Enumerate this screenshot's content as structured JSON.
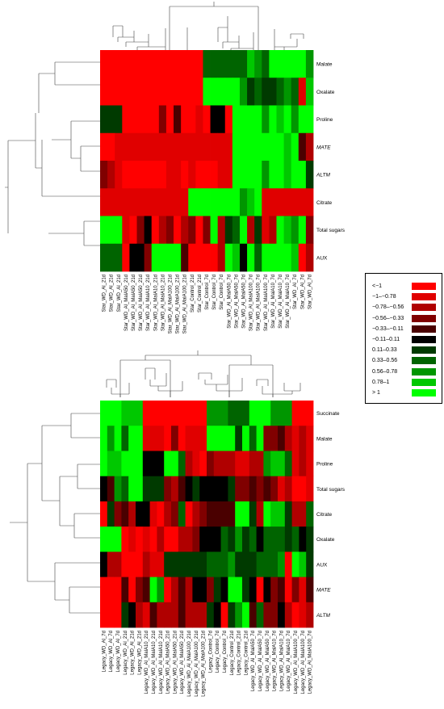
{
  "chart_data": [
    {
      "type": "heatmap",
      "name_hint": "star",
      "rows": [
        "Malate",
        "Oxalate",
        "Proline",
        "MATE",
        "ALTM",
        "Citrate",
        "Total sugars",
        "AUX"
      ],
      "italic_rows": [
        "MATE",
        "ALTM"
      ],
      "columns": [
        "Star_WD_Al_21d",
        "Star_WD_Al_21d",
        "Star_WD_Al_21d",
        "Star_WD_Al_MalA50_21d",
        "Star_WD_Al_MalA50_21d",
        "Star_WD_Al_MalA50_21d",
        "Star_WD_Al_MalA10_21d",
        "Star_WD_Al_MalA10_21d",
        "Star_WD_Al_MalA10_21d",
        "Star_WD_Al_MalA100_21d",
        "Star_WD_Al_MalA100_21d",
        "Star_WD_Al_MalA100_21d",
        "Star_Control_21d",
        "Star_Control_21d",
        "Star_Control_7d",
        "Star_Control_7d",
        "Star_Control_7d",
        "Star_WD_Al_MalA50_7d",
        "Star_WD_Al_MalA50_7d",
        "Star_WD_Al_MalA50_7d",
        "Star_WD_Al_MalA100_7d",
        "Star_WD_Al_MalA100_7d",
        "Star_WD_Al_MalA100_7d",
        "Star_WD_Al_MalA10_7d",
        "Star_WD_Al_MalA10_7d",
        "Star_WD_Al_MalA10_7d",
        "Star_WD_Al_7d",
        "Star_WD_Al_7d",
        "Star_WD_Al_7d"
      ],
      "values": [
        [
          -1.2,
          -1.2,
          -1.2,
          -1.2,
          -1.2,
          -1.2,
          -1.2,
          -1.2,
          -1.2,
          -1.2,
          -1.2,
          -1.2,
          -1.2,
          -1.2,
          0.4,
          0.4,
          0.4,
          0.4,
          0.4,
          0.4,
          0.9,
          0.6,
          0.4,
          1.2,
          1.2,
          1.2,
          1.2,
          1.2,
          0.7
        ],
        [
          -1.2,
          -1.2,
          -1.2,
          -1.2,
          -1.2,
          -1.2,
          -1.2,
          -1.2,
          -1.2,
          -1.2,
          -1.2,
          -1.2,
          -1.2,
          -1.2,
          1.2,
          1.2,
          1.2,
          1.2,
          1.2,
          0.6,
          0.3,
          0.4,
          0.3,
          0.3,
          0.4,
          0.6,
          0.5,
          -1.0,
          0.9
        ],
        [
          0.2,
          0.2,
          0.2,
          -1.2,
          -1.2,
          -1.2,
          -1.2,
          -1.2,
          -0.5,
          -1.2,
          -0.3,
          -1.2,
          -1.2,
          -0.9,
          -1.2,
          0.0,
          0.0,
          -1.2,
          1.2,
          1.2,
          1.2,
          1.2,
          0.6,
          1.2,
          0.9,
          1.2,
          0.6,
          1.2,
          1.2
        ],
        [
          -1.1,
          -1.1,
          -0.85,
          -0.85,
          -0.85,
          -0.85,
          -0.85,
          -0.85,
          -0.85,
          -0.85,
          -0.85,
          -0.85,
          -0.85,
          -0.85,
          -0.85,
          -0.85,
          -0.85,
          -0.85,
          1.2,
          1.2,
          1.2,
          1.2,
          1.2,
          1.2,
          1.2,
          0.8,
          1.2,
          -0.2,
          -0.6
        ],
        [
          -0.5,
          -0.7,
          -0.85,
          -1.1,
          -1.1,
          -1.1,
          -1.1,
          -1.1,
          -1.1,
          -0.85,
          -0.85,
          -1.1,
          -0.85,
          -1.1,
          -1.1,
          -1.1,
          -0.85,
          -0.85,
          1.2,
          1.2,
          1.2,
          1.2,
          0.7,
          1.2,
          1.2,
          0.8,
          1.2,
          1.2,
          0.3
        ],
        [
          -0.85,
          -0.85,
          -0.85,
          -0.85,
          -0.85,
          -0.85,
          -0.85,
          -0.85,
          -0.85,
          -0.85,
          -0.85,
          -0.85,
          1.2,
          1.2,
          1.2,
          1.2,
          1.2,
          1.2,
          1.2,
          0.6,
          0.9,
          1.2,
          -0.85,
          -0.85,
          -0.85,
          -0.85,
          -0.85,
          -0.85,
          -0.85
        ],
        [
          1.2,
          1.2,
          1.2,
          -0.95,
          -1.2,
          -0.45,
          -0.05,
          -1.2,
          -0.6,
          -0.35,
          -1.2,
          -0.7,
          -0.4,
          -1.2,
          -0.5,
          1.2,
          -0.7,
          0.2,
          0.5,
          1.2,
          -0.6,
          0.3,
          -0.8,
          -0.6,
          1.2,
          0.8,
          0.6,
          1.2,
          -0.55
        ],
        [
          0.4,
          0.4,
          0.4,
          -1.1,
          0.1,
          0.1,
          -0.35,
          1.2,
          1.2,
          1.2,
          1.2,
          -0.2,
          -1.2,
          -1.2,
          -1.2,
          -1.2,
          -0.7,
          1.2,
          0.8,
          -0.05,
          1.2,
          0.5,
          1.2,
          1.2,
          1.2,
          1.2,
          0.8,
          -1.2,
          -0.6
        ]
      ]
    },
    {
      "type": "heatmap",
      "name_hint": "legacy",
      "rows": [
        "Succinate",
        "Malate",
        "Proline",
        "Total sugars",
        "Citrate",
        "Oxalate",
        "AUX",
        "MATE",
        "ALTM"
      ],
      "italic_rows": [
        "MATE",
        "ALTM"
      ],
      "columns": [
        "Legacy_WD_Al_7d",
        "Legacy_WD_Al_7d",
        "Legacy_WD_Al_7d",
        "Legacy_WD_Al_21d",
        "Legacy_WD_Al_21d",
        "Legacy_WD_Al_21d",
        "Legacy_WD_Al_MalA10_21d",
        "Legacy_WD_Al_MalA10_21d",
        "Legacy_WD_Al_MalA10_21d",
        "Legacy_WD_Al_MalA50_21d",
        "Legacy_WD_Al_MalA50_21d",
        "Legacy_WD_Al_MalA50_21d",
        "Legacy_WD_Al_MalA100_21d",
        "Legacy_WD_Al_MalA100_21d",
        "Legacy_WD_Al_MalA100_21d",
        "Legacy_Control_7d",
        "Legacy_Control_7d",
        "Legacy_Control_7d",
        "Legacy_Control_21d",
        "Legacy_Control_21d",
        "Legacy_Control_21d",
        "Legacy_WD_Al_MalA50_7d",
        "Legacy_WD_Al_MalA50_7d",
        "Legacy_WD_Al_MalA50_7d",
        "Legacy_WD_Al_MalA10_7d",
        "Legacy_WD_Al_MalA10_7d",
        "Legacy_WD_Al_MalA10_7d",
        "Legacy_WD_Al_MalA100_7d",
        "Legacy_WD_Al_MalA100_7d",
        "Legacy_WD_Al_MalA100_7d"
      ],
      "values": [
        [
          1.2,
          1.2,
          1.2,
          0.9,
          0.9,
          0.9,
          -1.2,
          -1.2,
          -1.2,
          -1.2,
          -1.2,
          -1.2,
          -1.2,
          -1.2,
          -1.2,
          0.7,
          0.7,
          0.7,
          0.4,
          0.4,
          0.4,
          1.2,
          1.2,
          1.2,
          0.6,
          0.6,
          0.6,
          -1.2,
          -1.2,
          -1.2
        ],
        [
          1.2,
          0.6,
          1.2,
          0.5,
          1.2,
          1.2,
          -0.85,
          -0.85,
          -0.85,
          -1.2,
          -0.5,
          -1.2,
          -0.85,
          -0.85,
          -0.85,
          1.2,
          1.2,
          1.2,
          1.2,
          0.2,
          1.2,
          0.4,
          1.2,
          -0.4,
          -0.4,
          -0.2,
          -0.7,
          -0.85,
          -0.7,
          -0.85
        ],
        [
          1.2,
          0.8,
          0.8,
          1.2,
          1.2,
          1.2,
          -0.05,
          -0.05,
          -0.05,
          1.2,
          1.2,
          0.4,
          -0.7,
          -0.85,
          -1.2,
          -0.4,
          -0.7,
          -0.7,
          -0.7,
          -0.8,
          -0.8,
          -0.7,
          -0.7,
          0.7,
          0.8,
          0.9,
          0.5,
          -1.0,
          -0.7,
          -0.9
        ],
        [
          -0.05,
          -0.3,
          0.6,
          0.4,
          1.2,
          1.2,
          0.2,
          0.2,
          0.2,
          -0.5,
          -0.7,
          -0.3,
          0.0,
          0.2,
          0.1,
          0.1,
          -0.1,
          -0.1,
          0.3,
          -0.5,
          -0.5,
          -0.3,
          -0.5,
          -0.3,
          -0.5,
          -0.8,
          -0.7,
          -1.2,
          -1.2,
          -1.0
        ],
        [
          -1.2,
          0.3,
          -0.5,
          -0.2,
          -0.7,
          0.1,
          0.0,
          -0.85,
          -1.2,
          -0.6,
          -0.4,
          0.5,
          -1.2,
          -0.6,
          -0.4,
          -0.3,
          -0.2,
          -0.3,
          -0.3,
          1.2,
          1.2,
          0.3,
          -0.7,
          1.2,
          0.8,
          0.8,
          0.2,
          -0.6,
          -0.6,
          0.5
        ],
        [
          1.2,
          1.2,
          1.2,
          -1.2,
          -0.85,
          -1.2,
          -0.85,
          -1.2,
          -0.6,
          -1.2,
          -1.2,
          -0.6,
          -0.6,
          -0.4,
          -0.1,
          -0.05,
          -0.05,
          0.5,
          0.3,
          0.7,
          0.2,
          0.4,
          0.1,
          0.5,
          0.4,
          0.5,
          0.3,
          0.5,
          0.1,
          0.3
        ],
        [
          -0.05,
          -0.6,
          -0.6,
          -1.2,
          -1.2,
          -1.2,
          -0.6,
          -0.85,
          -0.85,
          0.2,
          0.2,
          0.2,
          0.3,
          0.2,
          0.3,
          0.5,
          0.5,
          0.5,
          0.6,
          0.3,
          0.3,
          0.2,
          0.4,
          0.5,
          0.5,
          0.6,
          -1.2,
          1.2,
          0.8,
          0.3
        ],
        [
          -1.2,
          -1.2,
          -1.2,
          -0.2,
          -1.2,
          -0.5,
          -0.2,
          1.2,
          0.6,
          -1.2,
          -0.6,
          -0.3,
          -0.7,
          -0.05,
          -0.05,
          -0.4,
          0.2,
          -0.05,
          1.2,
          1.2,
          0.3,
          -0.05,
          -1.2,
          -0.05,
          -0.5,
          -0.3,
          -1.2,
          -0.4,
          -0.8,
          -0.3
        ],
        [
          -1.2,
          -1.2,
          -1.2,
          0.2,
          0.0,
          -0.6,
          -0.85,
          -0.2,
          -0.6,
          -0.6,
          -0.6,
          -0.2,
          -0.6,
          -0.6,
          -0.6,
          0.3,
          -0.05,
          -1.2,
          0.2,
          0.7,
          1.2,
          -0.3,
          0.4,
          -0.5,
          -0.4,
          -0.05,
          -0.6,
          -1.2,
          -0.8,
          -0.6
        ]
      ]
    }
  ],
  "legend": {
    "entries": [
      {
        "label": "<−1",
        "color": "#ff0000"
      },
      {
        "label": "−1–−0.78",
        "color": "#e00000"
      },
      {
        "label": "−0.78–−0.56",
        "color": "#b00000"
      },
      {
        "label": "−0.56–−0.33",
        "color": "#800000"
      },
      {
        "label": "−0.33–−0.11",
        "color": "#4a0000"
      },
      {
        "label": "−0.11–0.11",
        "color": "#000000"
      },
      {
        "label": "0.11–0.33",
        "color": "#003a00"
      },
      {
        "label": "0.33–0.56",
        "color": "#006400"
      },
      {
        "label": "0.56–0.78",
        "color": "#009600"
      },
      {
        "label": "0.78–1",
        "color": "#00c800"
      },
      {
        "label": "> 1",
        "color": "#00ff00"
      }
    ]
  }
}
